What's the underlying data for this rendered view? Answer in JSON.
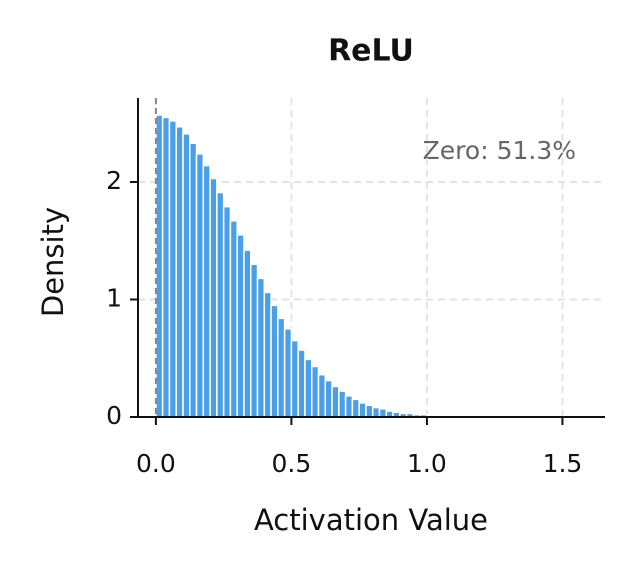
{
  "chart_data": {
    "type": "histogram",
    "title": "ReLU",
    "x_label": "Activation Value",
    "y_label": "Density",
    "annotation": "Zero: 51.3%",
    "bins": [
      0,
      0.025,
      0.05,
      0.075,
      0.1,
      0.125,
      0.15,
      0.175,
      0.2,
      0.225,
      0.25,
      0.275,
      0.3,
      0.325,
      0.35,
      0.375,
      0.4,
      0.425,
      0.45,
      0.475,
      0.5,
      0.525,
      0.55,
      0.575,
      0.6,
      0.625,
      0.65,
      0.675,
      0.7,
      0.725,
      0.75,
      0.775,
      0.8,
      0.825,
      0.85,
      0.875,
      0.9,
      0.925,
      0.95,
      0.975,
      1.0
    ],
    "values": [
      2.57,
      2.55,
      2.52,
      2.47,
      2.41,
      2.33,
      2.24,
      2.14,
      2.03,
      1.91,
      1.79,
      1.67,
      1.55,
      1.42,
      1.3,
      1.18,
      1.06,
      0.95,
      0.84,
      0.75,
      0.65,
      0.57,
      0.49,
      0.43,
      0.36,
      0.31,
      0.26,
      0.22,
      0.18,
      0.15,
      0.12,
      0.1,
      0.08,
      0.07,
      0.05,
      0.04,
      0.03,
      0.03,
      0.02,
      0.02
    ],
    "color": "#4a9fe8",
    "vline": 0,
    "xlim": [
      -0.066,
      1.657
    ],
    "xticks": [
      {
        "value": 0,
        "label": "0.0"
      },
      0.5,
      {
        "value": 1,
        "label": "1.0"
      },
      1.5
    ],
    "ylim": [
      0,
      2.715
    ],
    "yticks": [
      0,
      1,
      2
    ],
    "grid": true
  }
}
